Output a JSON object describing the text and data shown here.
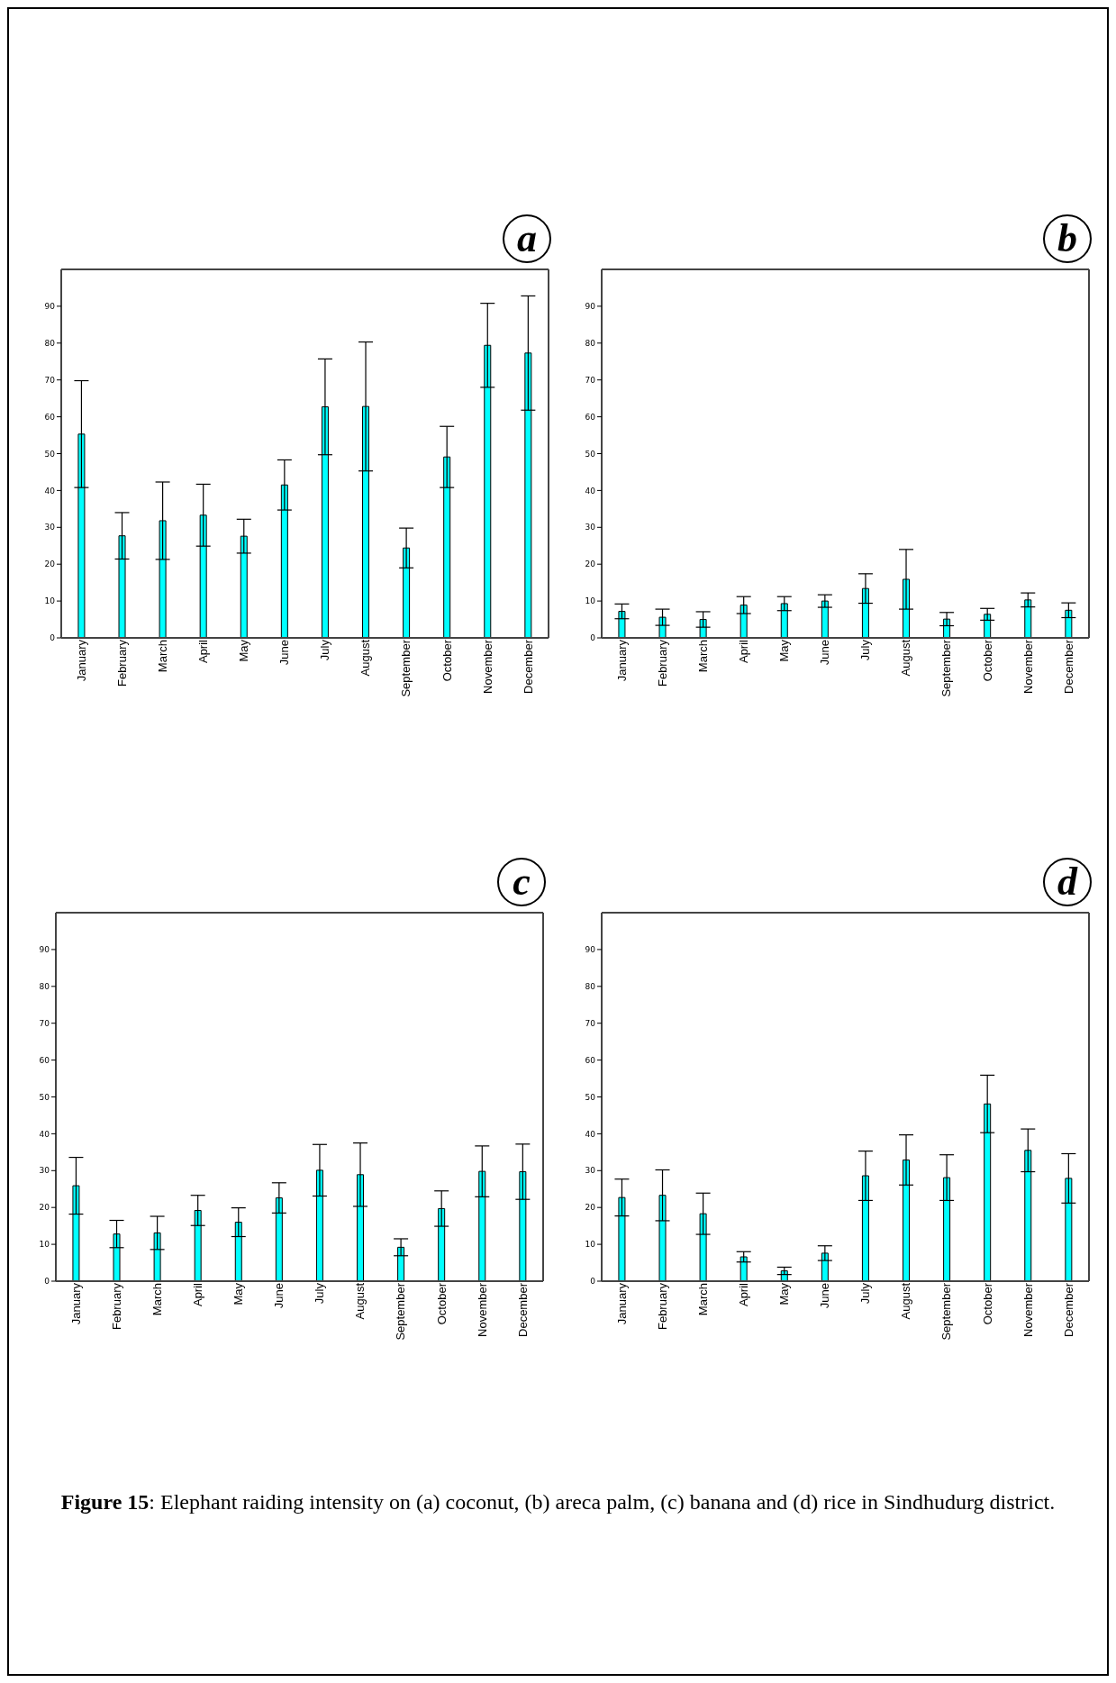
{
  "chart_data": [
    {
      "type": "bar",
      "title": "a",
      "categories": [
        "January",
        "February",
        "March",
        "April",
        "May",
        "June",
        "July",
        "August",
        "September",
        "October",
        "November",
        "December"
      ],
      "series": [
        {
          "color": "#00ffff",
          "values": [
            55.3,
            27.7,
            31.8,
            33.3,
            27.6,
            41.5,
            62.7,
            62.8,
            24.4,
            49.1,
            79.4,
            77.3
          ],
          "errors": [
            14.5,
            6.3,
            10.5,
            8.4,
            4.6,
            6.8,
            13,
            17.5,
            5.4,
            8.3,
            11.4,
            15.5
          ]
        }
      ],
      "ylim": [
        0,
        100
      ],
      "yticks": [
        0,
        10,
        20,
        30,
        40,
        50,
        60,
        70,
        80,
        90
      ],
      "grid": false,
      "legend": false
    },
    {
      "type": "bar",
      "title": "b",
      "categories": [
        "January",
        "February",
        "March",
        "April",
        "May",
        "June",
        "July",
        "August",
        "September",
        "October",
        "November",
        "December"
      ],
      "series": [
        {
          "color": "#00ffff",
          "values": [
            7.2,
            5.6,
            5.0,
            8.9,
            9.3,
            10.0,
            13.4,
            15.9,
            5.1,
            6.4,
            10.3,
            7.5
          ],
          "errors": [
            2,
            2.2,
            2.1,
            2.3,
            1.9,
            1.7,
            4,
            8.1,
            1.8,
            1.6,
            1.9,
            2
          ]
        }
      ],
      "ylim": [
        0,
        100
      ],
      "yticks": [
        0,
        10,
        20,
        30,
        40,
        50,
        60,
        70,
        80,
        90
      ],
      "grid": false,
      "legend": false
    },
    {
      "type": "bar",
      "title": "c",
      "categories": [
        "January",
        "February",
        "March",
        "April",
        "May",
        "June",
        "July",
        "August",
        "September",
        "October",
        "November",
        "December"
      ],
      "series": [
        {
          "color": "#00ffff",
          "values": [
            25.9,
            12.8,
            13.1,
            19.2,
            16.0,
            22.6,
            30.1,
            28.9,
            9.2,
            19.7,
            29.8,
            29.7
          ],
          "errors": [
            7.7,
            3.7,
            4.5,
            4.1,
            3.9,
            4.1,
            7,
            8.6,
            2.3,
            4.8,
            6.9,
            7.5
          ]
        }
      ],
      "ylim": [
        0,
        100
      ],
      "yticks": [
        0,
        10,
        20,
        30,
        40,
        50,
        60,
        70,
        80,
        90
      ],
      "grid": false,
      "legend": false
    },
    {
      "type": "bar",
      "title": "d",
      "categories": [
        "January",
        "February",
        "March",
        "April",
        "May",
        "June",
        "July",
        "August",
        "September",
        "October",
        "November",
        "December"
      ],
      "series": [
        {
          "color": "#00ffff",
          "values": [
            22.7,
            23.3,
            18.3,
            6.6,
            2.8,
            7.6,
            28.6,
            32.9,
            28.1,
            48.1,
            35.5,
            27.9
          ],
          "errors": [
            5,
            6.9,
            5.6,
            1.4,
            1,
            2,
            6.7,
            6.8,
            6.2,
            7.8,
            5.8,
            6.7
          ]
        }
      ],
      "ylim": [
        0,
        100
      ],
      "yticks": [
        0,
        10,
        20,
        30,
        40,
        50,
        60,
        70,
        80,
        90
      ],
      "grid": false,
      "legend": false,
      "annotations": [
        "Figure 15: Elephant raiding intensity on (a) coconut, (b) areca palm, (c) banana and (d) rice in Sindhudurg district."
      ]
    }
  ]
}
